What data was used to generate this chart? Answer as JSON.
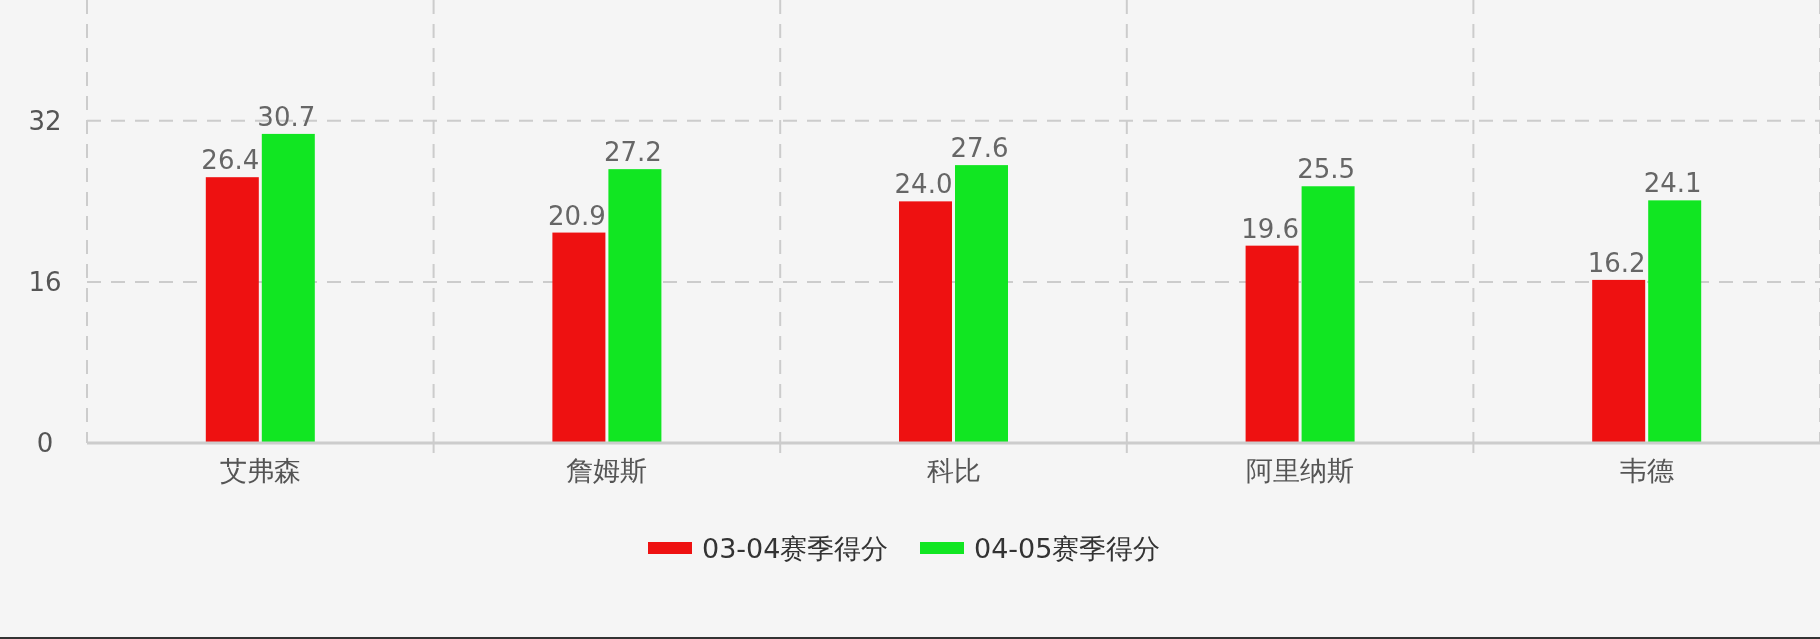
{
  "chart_data": {
    "type": "bar",
    "categories": [
      "艾弗森",
      "詹姆斯",
      "科比",
      "阿里纳斯",
      "韦德"
    ],
    "series": [
      {
        "name": "03-04赛季得分",
        "color": "#ee1111",
        "values": [
          26.4,
          20.9,
          24.0,
          19.6,
          16.2
        ],
        "value_labels": [
          "26.4",
          "20.9",
          "24.0",
          "19.6",
          "16.2"
        ]
      },
      {
        "name": "04-05赛季得分",
        "color": "#11e622",
        "values": [
          30.7,
          27.2,
          27.6,
          25.5,
          24.1
        ],
        "value_labels": [
          "30.7",
          "27.2",
          "27.6",
          "25.5",
          "24.1"
        ]
      }
    ],
    "ylim": [
      0,
      44
    ],
    "yticks": [
      0,
      16,
      32
    ],
    "grid": true,
    "legend": "bottom"
  }
}
